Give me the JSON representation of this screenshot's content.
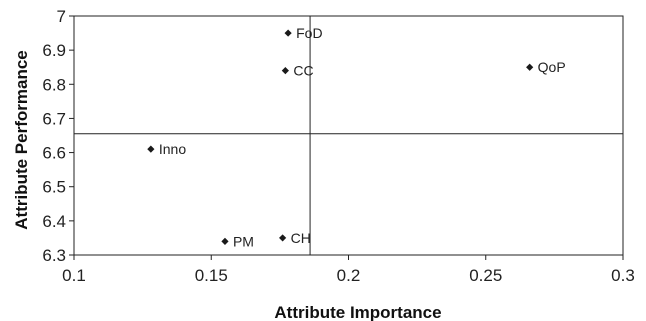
{
  "chart_data": {
    "type": "scatter",
    "xlabel": "Attribute Importance",
    "ylabel": "Attribute Performance",
    "xlim": [
      0.1,
      0.3
    ],
    "ylim": [
      6.3,
      7.0
    ],
    "xticks": [
      "0.1",
      "0.15",
      "0.2",
      "0.25",
      "0.3"
    ],
    "yticks": [
      "6.3",
      "6.4",
      "6.5",
      "6.6",
      "6.7",
      "6.8",
      "6.9",
      "7"
    ],
    "grid": false,
    "reference_lines": {
      "x": 0.186,
      "y": 6.655
    },
    "points": [
      {
        "label": "FoD",
        "x": 0.178,
        "y": 6.95
      },
      {
        "label": "CC",
        "x": 0.177,
        "y": 6.84
      },
      {
        "label": "QoP",
        "x": 0.266,
        "y": 6.85
      },
      {
        "label": "Inno",
        "x": 0.128,
        "y": 6.61
      },
      {
        "label": "PM",
        "x": 0.155,
        "y": 6.34
      },
      {
        "label": "CH",
        "x": 0.176,
        "y": 6.35
      }
    ],
    "marker_color": "#1a1a1a"
  }
}
